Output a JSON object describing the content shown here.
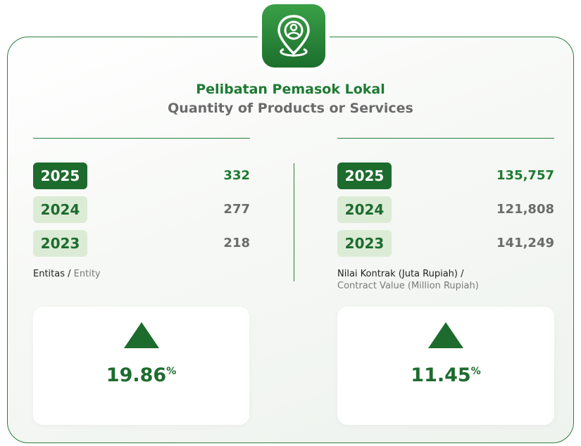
{
  "header": {
    "title": "Pelibatan Pemasok Lokal",
    "subtitle": "Quantity of Products or Services"
  },
  "panels": [
    {
      "rows": [
        [
          "2025",
          "332"
        ],
        [
          "2024",
          "277"
        ],
        [
          "2023",
          "218"
        ]
      ],
      "unit": {
        "local": "Entitas",
        "separator": " / ",
        "english": "Entity"
      },
      "change": "19.86",
      "change_unit": "%"
    },
    {
      "rows": [
        [
          "2025",
          "135,757"
        ],
        [
          "2024",
          "121,808"
        ],
        [
          "2023",
          "141,249"
        ]
      ],
      "unit": {
        "local": "Nilai Kontrak (Juta Rupiah) /",
        "english": "Contract Value (Million Rupiah)"
      },
      "change": "11.45",
      "change_unit": "%"
    }
  ]
}
